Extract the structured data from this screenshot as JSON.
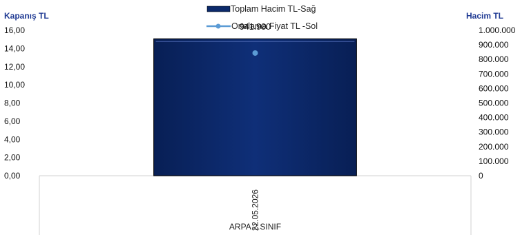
{
  "chart_data": {
    "type": "bar",
    "title": "",
    "categories": [
      "22.05.2026"
    ],
    "group_label": "ARPA 2.SINIF",
    "left_axis": {
      "title": "Kapanış TL",
      "min": 0,
      "max": 16,
      "step": 2,
      "ticks": [
        "0,00",
        "2,00",
        "4,00",
        "6,00",
        "8,00",
        "10,00",
        "12,00",
        "14,00",
        "16,00"
      ]
    },
    "right_axis": {
      "title": "Hacim TL",
      "min": 0,
      "max": 1000000,
      "step": 100000,
      "ticks": [
        "0",
        "100.000",
        "200.000",
        "300.000",
        "400.000",
        "500.000",
        "600.000",
        "700.000",
        "800.000",
        "900.000",
        "1.000.000"
      ]
    },
    "series": [
      {
        "name": "Toplam Hacim TL-Sağ",
        "kind": "bar",
        "axis": "right",
        "values": [
          941900
        ],
        "value_labels": [
          "941.900"
        ],
        "color": "#0c2a6b"
      },
      {
        "name": "Ortalama Fiyat TL -Sol",
        "kind": "line",
        "axis": "left",
        "values": [
          13.5
        ],
        "color": "#5b9bd5"
      }
    ],
    "legend_position": "top-center",
    "grid": false
  }
}
